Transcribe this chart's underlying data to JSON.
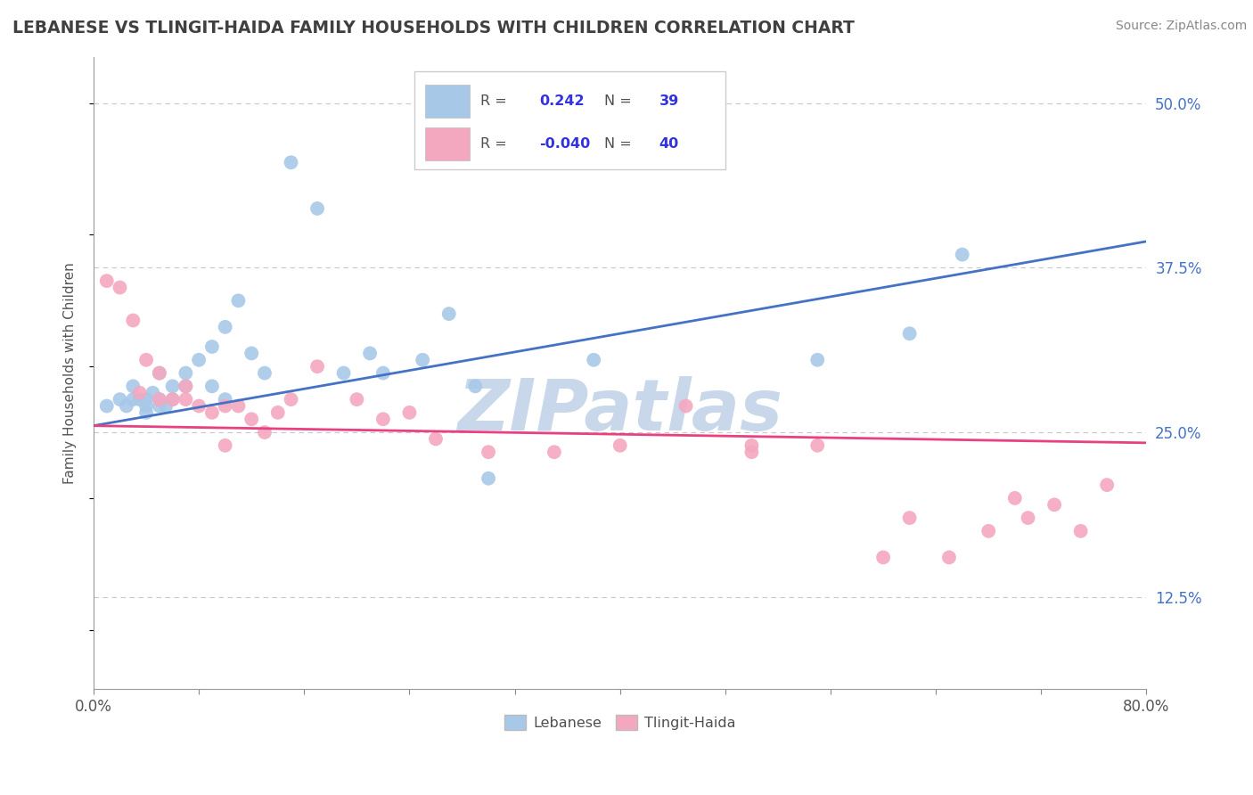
{
  "title": "LEBANESE VS TLINGIT-HAIDA FAMILY HOUSEHOLDS WITH CHILDREN CORRELATION CHART",
  "source": "Source: ZipAtlas.com",
  "ylabel": "Family Households with Children",
  "xlim": [
    0.0,
    0.8
  ],
  "ylim": [
    0.055,
    0.535
  ],
  "xticks": [
    0.0,
    0.08,
    0.16,
    0.24,
    0.32,
    0.4,
    0.48,
    0.56,
    0.64,
    0.72,
    0.8
  ],
  "xticklabels": [
    "0.0%",
    "",
    "",
    "",
    "",
    "",
    "",
    "",
    "",
    "",
    "80.0%"
  ],
  "yticks_right": [
    0.125,
    0.25,
    0.375,
    0.5
  ],
  "ytick_labels_right": [
    "12.5%",
    "25.0%",
    "37.5%",
    "50.0%"
  ],
  "legend_r_blue": "0.242",
  "legend_n_blue": "39",
  "legend_r_pink": "-0.040",
  "legend_n_pink": "40",
  "blue_color": "#A8C8E8",
  "pink_color": "#F4A8C0",
  "line_blue": "#4472C4",
  "line_pink": "#E84080",
  "watermark": "ZIPatlas",
  "watermark_color": "#C8D8EA",
  "background_color": "#FFFFFF",
  "grid_color": "#C8C8C8",
  "title_color": "#404040",
  "legend_val_color": "#3333DD",
  "legend_label_color": "#505050",
  "blue_x": [
    0.01,
    0.02,
    0.025,
    0.03,
    0.03,
    0.035,
    0.04,
    0.04,
    0.04,
    0.045,
    0.05,
    0.05,
    0.05,
    0.055,
    0.06,
    0.06,
    0.07,
    0.07,
    0.08,
    0.09,
    0.09,
    0.1,
    0.1,
    0.11,
    0.12,
    0.13,
    0.15,
    0.17,
    0.19,
    0.21,
    0.22,
    0.25,
    0.27,
    0.29,
    0.3,
    0.38,
    0.55,
    0.62,
    0.66
  ],
  "blue_y": [
    0.27,
    0.275,
    0.27,
    0.285,
    0.275,
    0.275,
    0.265,
    0.27,
    0.275,
    0.28,
    0.295,
    0.27,
    0.275,
    0.27,
    0.285,
    0.275,
    0.295,
    0.285,
    0.305,
    0.315,
    0.285,
    0.33,
    0.275,
    0.35,
    0.31,
    0.295,
    0.455,
    0.42,
    0.295,
    0.31,
    0.295,
    0.305,
    0.34,
    0.285,
    0.215,
    0.305,
    0.305,
    0.325,
    0.385
  ],
  "pink_x": [
    0.01,
    0.02,
    0.03,
    0.035,
    0.04,
    0.05,
    0.05,
    0.06,
    0.07,
    0.07,
    0.08,
    0.09,
    0.1,
    0.1,
    0.11,
    0.12,
    0.13,
    0.14,
    0.15,
    0.17,
    0.2,
    0.22,
    0.24,
    0.26,
    0.3,
    0.35,
    0.4,
    0.45,
    0.5,
    0.5,
    0.55,
    0.6,
    0.62,
    0.65,
    0.68,
    0.7,
    0.71,
    0.73,
    0.75,
    0.77
  ],
  "pink_y": [
    0.365,
    0.36,
    0.335,
    0.28,
    0.305,
    0.295,
    0.275,
    0.275,
    0.285,
    0.275,
    0.27,
    0.265,
    0.27,
    0.24,
    0.27,
    0.26,
    0.25,
    0.265,
    0.275,
    0.3,
    0.275,
    0.26,
    0.265,
    0.245,
    0.235,
    0.235,
    0.24,
    0.27,
    0.235,
    0.24,
    0.24,
    0.155,
    0.185,
    0.155,
    0.175,
    0.2,
    0.185,
    0.195,
    0.175,
    0.21
  ]
}
